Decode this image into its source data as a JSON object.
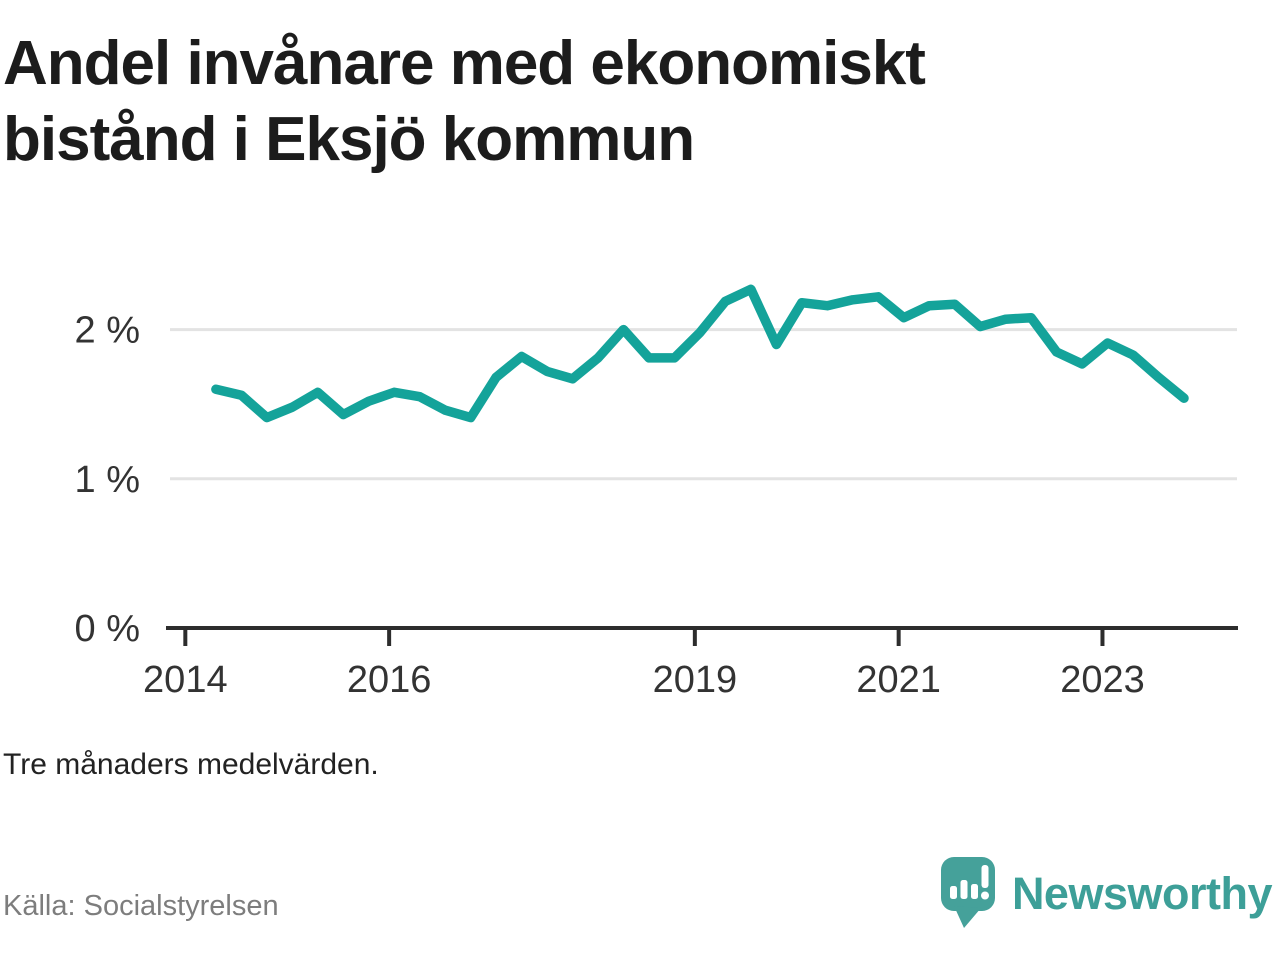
{
  "title": {
    "line1": "Andel invånare med ekonomiskt",
    "line2": "bistånd i Eksjö kommun"
  },
  "note": "Tre månaders medelvärden.",
  "source": "Källa: Socialstyrelsen",
  "branding": {
    "name": "Newsworthy",
    "logo_icon": "speech-bubble-bar-chart"
  },
  "colors": {
    "line": "#14a39a",
    "grid": "#e3e3e3",
    "axis": "#2d2d2d",
    "text": "#333333",
    "muted": "#7d7d7d",
    "logo": "#45a19a",
    "wordmark": "#3d9f98"
  },
  "chart_data": {
    "type": "line",
    "title": "Andel invånare med ekonomiskt bistånd i Eksjö kommun",
    "subtitle": "Tre månaders medelvärden.",
    "unit": "%",
    "x": [
      2014.3,
      2014.55,
      2014.8,
      2015.05,
      2015.3,
      2015.55,
      2015.8,
      2016.05,
      2016.3,
      2016.55,
      2016.8,
      2017.05,
      2017.3,
      2017.55,
      2017.8,
      2018.05,
      2018.3,
      2018.55,
      2018.8,
      2019.05,
      2019.3,
      2019.55,
      2019.8,
      2020.05,
      2020.3,
      2020.55,
      2020.8,
      2021.05,
      2021.3,
      2021.55,
      2021.8,
      2022.05,
      2022.3,
      2022.55,
      2022.8,
      2023.05,
      2023.3,
      2023.55,
      2023.8
    ],
    "values": [
      1.6,
      1.56,
      1.41,
      1.48,
      1.58,
      1.43,
      1.52,
      1.58,
      1.55,
      1.46,
      1.41,
      1.68,
      1.82,
      1.72,
      1.67,
      1.81,
      2.0,
      1.81,
      1.81,
      1.98,
      2.19,
      2.27,
      1.9,
      2.18,
      2.16,
      2.2,
      2.22,
      2.08,
      2.16,
      2.17,
      2.02,
      2.07,
      2.08,
      1.85,
      1.77,
      1.91,
      1.83,
      1.68,
      1.54
    ],
    "xticks": [
      2014,
      2016,
      2019,
      2021,
      2023
    ],
    "xtick_labels": [
      "2014",
      "2016",
      "2019",
      "2021",
      "2023"
    ],
    "yticks": [
      0,
      1,
      2
    ],
    "ytick_labels": [
      "0 %",
      "1 %",
      "2 %"
    ],
    "xlim": [
      2013.83,
      2024.33
    ],
    "ylim": [
      0,
      2.67
    ],
    "grid": "horizontal-at-yticks",
    "legend": "none",
    "series_name": "Andel invånare med ekonomiskt bistånd"
  }
}
